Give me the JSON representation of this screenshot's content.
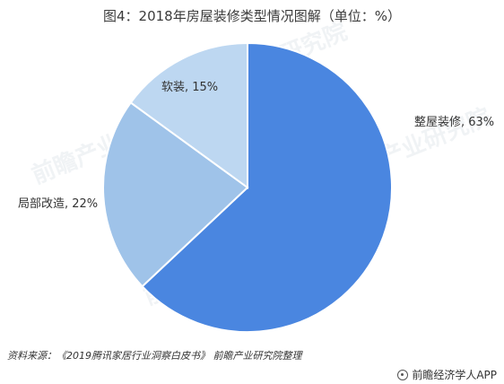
{
  "chart_data": {
    "type": "pie",
    "title": "图4：2018年房屋装修类型情况图解（单位：%）",
    "slices": [
      {
        "label": "整屋装修",
        "value": 63,
        "display": "整屋装修, 63%",
        "color": "#4a86e0"
      },
      {
        "label": "局部改造",
        "value": 22,
        "display": "局部改造, 22%",
        "color": "#9fc3e9"
      },
      {
        "label": "软装",
        "value": 15,
        "display": "软装, 15%",
        "color": "#bdd7f1"
      }
    ]
  },
  "source": "资料来源：《2019腾讯家居行业洞察白皮书》 前瞻产业研究院整理",
  "brand": "前瞻经济学人APP",
  "watermark": "前瞻产业研究院",
  "icons": {
    "brand_logo": "qianzhan-logo-icon"
  }
}
